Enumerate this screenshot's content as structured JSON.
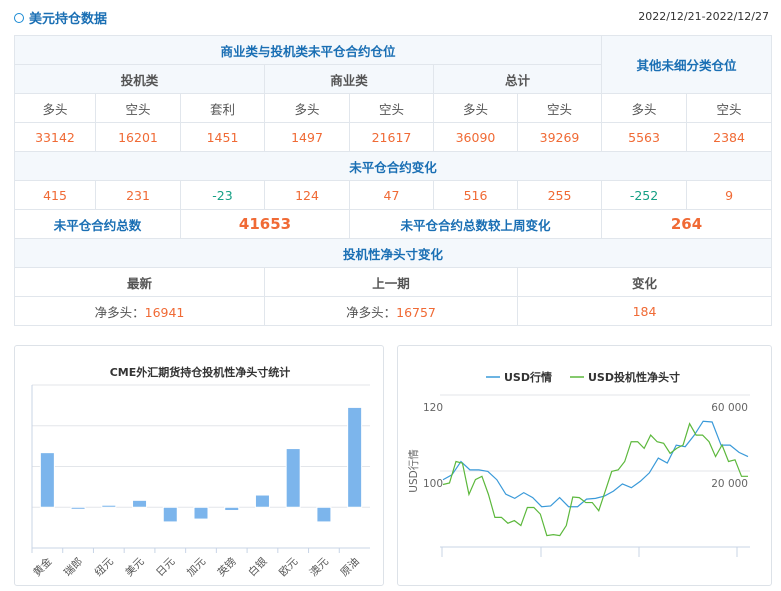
{
  "header": {
    "title": "美元持仓数据",
    "date_range": "2022/12/21-2022/12/27"
  },
  "table": {
    "group_title": "商业类与投机类未平仓合约仓位",
    "other_title": "其他未细分类仓位",
    "groups": [
      "投机类",
      "商业类",
      "总计"
    ],
    "columns": [
      "多头",
      "空头",
      "套利",
      "多头",
      "空头",
      "多头",
      "空头",
      "多头",
      "空头"
    ],
    "positions": [
      "33142",
      "16201",
      "1451",
      "1497",
      "21617",
      "36090",
      "39269",
      "5563",
      "2384"
    ],
    "change_title": "未平仓合约变化",
    "changes": [
      "415",
      "231",
      "-23",
      "124",
      "47",
      "516",
      "255",
      "-252",
      "9"
    ],
    "total_label": "未平仓合约总数",
    "total_value": "41653",
    "total_change_label": "未平仓合约总数较上周变化",
    "total_change_value": "264",
    "net_title": "投机性净头寸变化",
    "net_headers": [
      "最新",
      "上一期",
      "变化"
    ],
    "net_prefix": "净多头：",
    "net_latest": "16941",
    "net_previous": "16757",
    "net_change": "184"
  },
  "colors": {
    "accent": "#1a6fb4",
    "positive": "#f06a35",
    "negative": "#16a085",
    "bar": "#7cb5ec",
    "usd": "#3a9ad9",
    "net": "#5cb83c"
  },
  "chart_data": [
    {
      "type": "bar",
      "title": "CME外汇期货持仓投机性净头寸统计",
      "categories": [
        "黄金",
        "瑞郎",
        "纽元",
        "美元",
        "日元",
        "加元",
        "英镑",
        "白银",
        "欧元",
        "澳元",
        "原油"
      ],
      "values": [
        1.34,
        -0.05,
        0.05,
        0.17,
        -0.36,
        -0.29,
        -0.08,
        0.3,
        1.44,
        -0.36,
        2.45
      ],
      "ylim": [
        -1,
        3
      ],
      "grid": true,
      "legend": "none"
    },
    {
      "type": "line",
      "legend": "top",
      "ylabel": "USD行情",
      "left_ticks": [
        "120",
        "100"
      ],
      "right_ticks": [
        "60 000",
        "20 000"
      ],
      "ylim_left": [
        80,
        120
      ],
      "ylim_right": [
        -20000,
        60000
      ],
      "series": [
        {
          "name": "USD行情",
          "axis": "left",
          "values": [
            97.7,
            99,
            102.5,
            100.3,
            100.3,
            99.9,
            97.7,
            93.9,
            92.8,
            94.3,
            93,
            90.6,
            90.8,
            93,
            90.6,
            90.6,
            92.6,
            92.8,
            93.4,
            94.7,
            96.6,
            95.6,
            97.3,
            99.5,
            103.4,
            102.1,
            106.8,
            106.4,
            109.4,
            113.1,
            112.9,
            106.8,
            106.8,
            104.9,
            103.8
          ]
        },
        {
          "name": "USD投机性净头寸",
          "axis": "right",
          "values": [
            12900,
            13700,
            25000,
            24100,
            7700,
            15500,
            17200,
            7700,
            -4400,
            -4400,
            -7500,
            -6100,
            -8700,
            800,
            800,
            -2700,
            -14000,
            -13500,
            -14000,
            -8700,
            6300,
            6000,
            3400,
            3400,
            -900,
            9400,
            19800,
            20600,
            25000,
            35400,
            35400,
            31900,
            38900,
            35400,
            34600,
            29300,
            31900,
            33700,
            44900,
            38900,
            38900,
            35400,
            27600,
            33700,
            25000,
            25900,
            17200,
            17200
          ]
        }
      ]
    }
  ]
}
